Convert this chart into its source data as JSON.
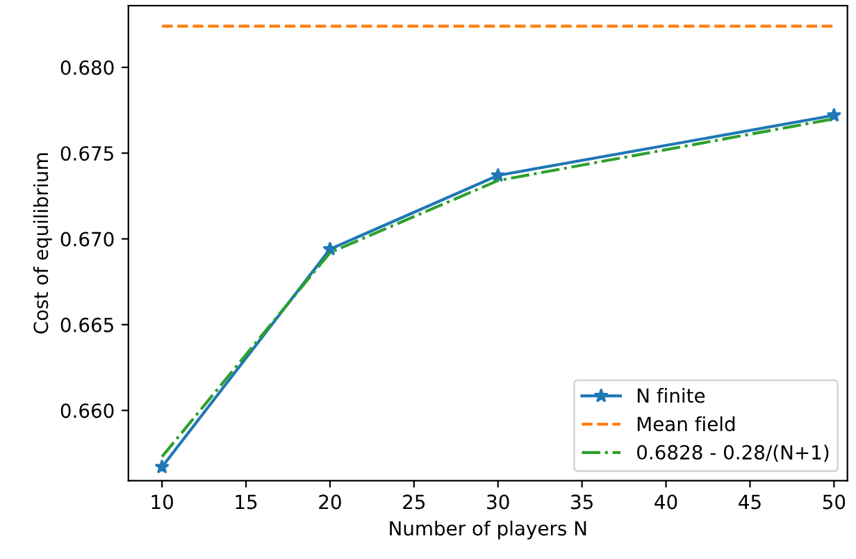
{
  "chart_data": {
    "type": "line",
    "xlabel": "Number of players N",
    "ylabel": "Cost of equilibrium",
    "series": [
      {
        "name": "N finite",
        "color": "#1f77b4",
        "x": [
          10,
          20,
          30,
          50
        ],
        "values": [
          0.6567,
          0.6694,
          0.6737,
          0.6772
        ],
        "marker": "star",
        "line_style": "solid"
      },
      {
        "name": "Mean field",
        "color": "#ff7f0e",
        "x": [
          10,
          50
        ],
        "values": [
          0.6824,
          0.6824
        ],
        "marker": "none",
        "line_style": "dashed"
      },
      {
        "name": "0.6828 - 0.28/(N+1)",
        "color": "#2ca02c",
        "x": [
          10,
          20,
          30,
          50
        ],
        "values": [
          0.6573,
          0.6692,
          0.6734,
          0.677
        ],
        "marker": "none",
        "line_style": "dashdot"
      }
    ],
    "xlim": [
      8,
      50.8
    ],
    "ylim": [
      0.6559,
      0.6836
    ],
    "xticks": [
      10,
      15,
      20,
      25,
      30,
      35,
      40,
      45,
      50
    ],
    "yticks": [
      {
        "value": 0.66,
        "label": "0.660"
      },
      {
        "value": 0.665,
        "label": "0.665"
      },
      {
        "value": 0.67,
        "label": "0.670"
      },
      {
        "value": 0.675,
        "label": "0.675"
      },
      {
        "value": 0.68,
        "label": "0.680"
      }
    ],
    "legend": "bottom right"
  }
}
